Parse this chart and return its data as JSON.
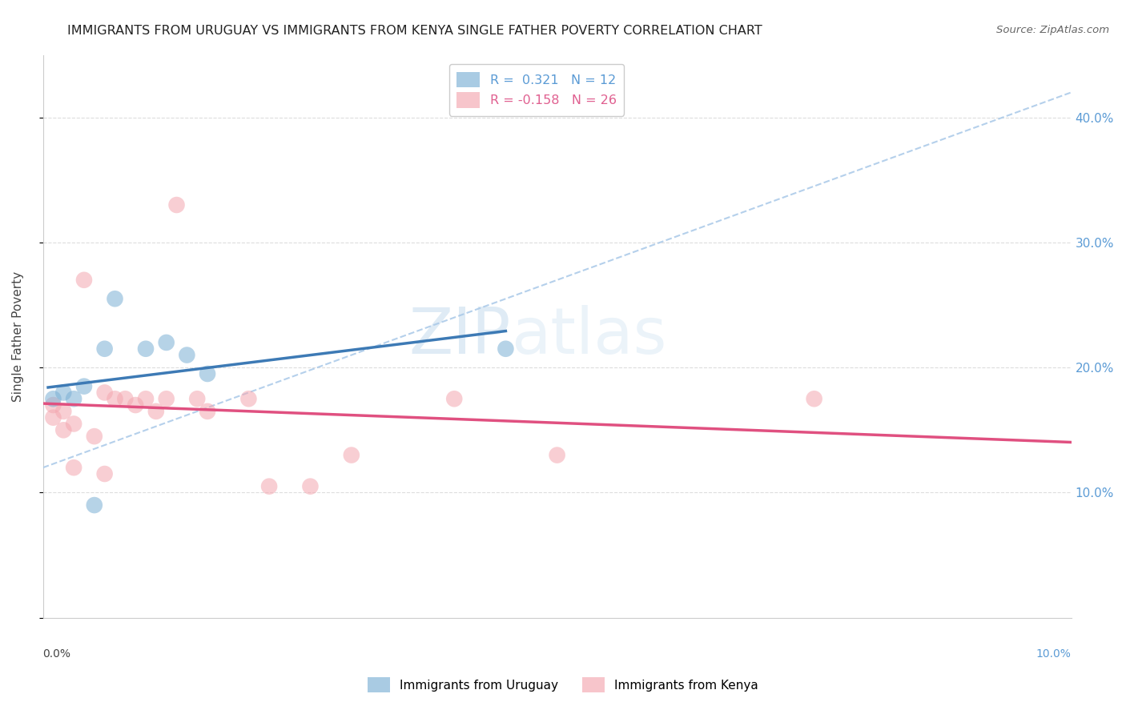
{
  "title": "IMMIGRANTS FROM URUGUAY VS IMMIGRANTS FROM KENYA SINGLE FATHER POVERTY CORRELATION CHART",
  "source": "Source: ZipAtlas.com",
  "ylabel": "Single Father Poverty",
  "watermark_zip": "ZIP",
  "watermark_atlas": "atlas",
  "xlim": [
    0.0,
    0.1
  ],
  "ylim": [
    0.0,
    0.45
  ],
  "ytick_vals": [
    0.0,
    0.1,
    0.2,
    0.3,
    0.4
  ],
  "ytick_labels_right": [
    "",
    "10.0%",
    "20.0%",
    "30.0%",
    "40.0%"
  ],
  "uruguay_R": 0.321,
  "uruguay_N": 12,
  "kenya_R": -0.158,
  "kenya_N": 26,
  "uruguay_color": "#7bafd4",
  "kenya_color": "#f4a7b0",
  "uruguay_line_color": "#3d7ab5",
  "kenya_line_color": "#e05080",
  "dashed_line_color": "#a8c8e8",
  "legend_labels": [
    "Immigrants from Uruguay",
    "Immigrants from Kenya"
  ],
  "title_color": "#222222",
  "source_color": "#666666",
  "grid_color": "#dddddd",
  "axis_color": "#cccccc",
  "right_label_color": "#5b9bd5",
  "uruguay_points_x": [
    0.001,
    0.002,
    0.003,
    0.004,
    0.005,
    0.006,
    0.007,
    0.01,
    0.012,
    0.014,
    0.016,
    0.045
  ],
  "uruguay_points_y": [
    0.175,
    0.18,
    0.175,
    0.185,
    0.09,
    0.215,
    0.255,
    0.215,
    0.22,
    0.21,
    0.195,
    0.215
  ],
  "kenya_points_x": [
    0.001,
    0.001,
    0.002,
    0.002,
    0.003,
    0.003,
    0.004,
    0.005,
    0.006,
    0.006,
    0.007,
    0.008,
    0.009,
    0.01,
    0.011,
    0.012,
    0.013,
    0.015,
    0.016,
    0.02,
    0.022,
    0.026,
    0.03,
    0.04,
    0.05,
    0.075
  ],
  "kenya_points_y": [
    0.17,
    0.16,
    0.165,
    0.15,
    0.155,
    0.12,
    0.27,
    0.145,
    0.18,
    0.115,
    0.175,
    0.175,
    0.17,
    0.175,
    0.165,
    0.175,
    0.33,
    0.175,
    0.165,
    0.175,
    0.105,
    0.105,
    0.13,
    0.175,
    0.13,
    0.175
  ],
  "dashed_line_x": [
    0.0,
    0.1
  ],
  "dashed_line_y": [
    0.12,
    0.42
  ]
}
